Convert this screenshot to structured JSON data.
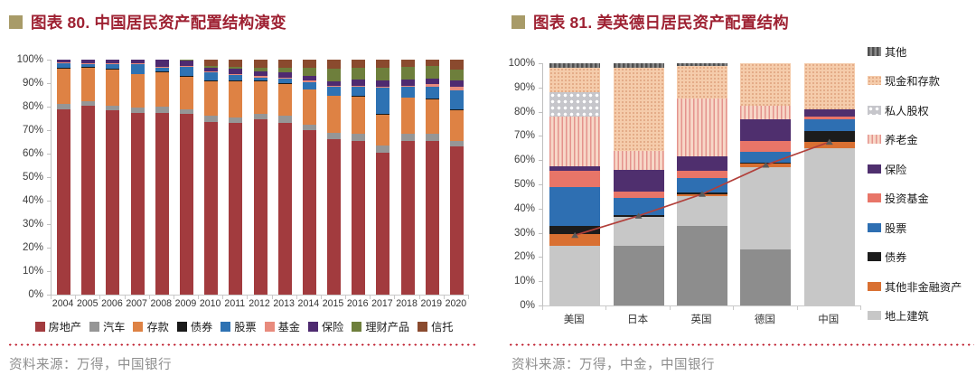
{
  "page": {
    "colors": {
      "title_red": "#9E2132",
      "bullet_khaki": "#A89B68",
      "dotted_red": "#BF1E2E",
      "source_gray": "#8E8E8E"
    },
    "left_source": "资料来源：万得，中国银行",
    "right_source": "资料来源：万得，中金，中国银行"
  },
  "chart_data": [
    {
      "type": "bar",
      "stacked": true,
      "title": "图表 80. 中国居民资产配置结构演变",
      "ylim": [
        0,
        100
      ],
      "y_ticks": [
        "0%",
        "10%",
        "20%",
        "30%",
        "40%",
        "50%",
        "60%",
        "70%",
        "80%",
        "90%",
        "100%"
      ],
      "categories": [
        "2004",
        "2005",
        "2006",
        "2007",
        "2008",
        "2009",
        "2010",
        "2011",
        "2012",
        "2013",
        "2014",
        "2015",
        "2016",
        "2017",
        "2018",
        "2019",
        "2020"
      ],
      "series": [
        {
          "name": "房地产",
          "color": "#A23B3E",
          "values": [
            79,
            80.5,
            78.5,
            77.5,
            77.5,
            77,
            73.5,
            73,
            74.5,
            73,
            70,
            66,
            65.5,
            60.5,
            65.5,
            65.5,
            63
          ]
        },
        {
          "name": "汽车",
          "color": "#969696",
          "values": [
            2,
            2,
            2,
            2,
            2.5,
            2,
            2.5,
            2.5,
            2.5,
            3,
            2.5,
            3,
            3,
            3,
            3,
            3,
            2.5
          ]
        },
        {
          "name": "存款",
          "color": "#DE8244",
          "values": [
            15.2,
            14.2,
            15.2,
            14.2,
            14.7,
            13.7,
            14.7,
            15.2,
            13.7,
            13.7,
            14.7,
            15.5,
            15.7,
            13.2,
            15.2,
            14.7,
            13
          ]
        },
        {
          "name": "债券",
          "color": "#1A1A1A",
          "values": [
            0.3,
            0.3,
            0.3,
            0.3,
            0.3,
            0.3,
            0.3,
            0.3,
            0.3,
            0.3,
            0.3,
            0.3,
            0.3,
            0.3,
            0.3,
            0.3,
            0.3
          ]
        },
        {
          "name": "股票",
          "color": "#2E72B3",
          "values": [
            2,
            1,
            2,
            4,
            1.5,
            4,
            3.5,
            2.5,
            1.5,
            2,
            3,
            3.5,
            4,
            11,
            4.5,
            5,
            8
          ]
        },
        {
          "name": "基金",
          "color": "#E88B7D",
          "values": [
            0.3,
            0.5,
            0.5,
            0.5,
            0.5,
            0.5,
            0.5,
            0.5,
            0.5,
            0.5,
            0.5,
            0.5,
            0.5,
            0.5,
            0.5,
            1,
            1.5
          ]
        },
        {
          "name": "保险",
          "color": "#4E2A70",
          "values": [
            1.2,
            1.5,
            1.5,
            1.5,
            3,
            2,
            1.5,
            2,
            2,
            2,
            2,
            2,
            2.5,
            2.5,
            2.5,
            2.5,
            3
          ]
        },
        {
          "name": "理财产品",
          "color": "#6E7F3C",
          "values": [
            0,
            0,
            0,
            0,
            0,
            0.5,
            1,
            1,
            1.5,
            2,
            3.5,
            5.5,
            5,
            5.5,
            5.5,
            5.5,
            4.5
          ]
        },
        {
          "name": "信托",
          "color": "#8A4A2E",
          "values": [
            0,
            0,
            0,
            0,
            0,
            0,
            2.5,
            3,
            3.5,
            3.5,
            3.5,
            3.7,
            3.5,
            3.5,
            3,
            2.5,
            4.2
          ]
        }
      ],
      "legend": [
        "房地产",
        "汽车",
        "存款",
        "债券",
        "股票",
        "基金",
        "保险",
        "理财产品",
        "信托"
      ]
    },
    {
      "type": "bar",
      "stacked": true,
      "title": "图表 81. 美英德日居民资产配置结构",
      "ylim": [
        0,
        100
      ],
      "y_ticks": [
        "0%",
        "10%",
        "20%",
        "30%",
        "40%",
        "50%",
        "60%",
        "70%",
        "80%",
        "90%",
        "100%"
      ],
      "categories": [
        "美国",
        "日本",
        "英国",
        "德国",
        "中国"
      ],
      "series": [
        {
          "name": "",
          "key": "base-dark-gray",
          "color": "#8D8D8D",
          "values": [
            0,
            24.5,
            33,
            23,
            0
          ]
        },
        {
          "name": "地上建筑",
          "key": "building",
          "color": "#C7C7C7",
          "values": [
            24.5,
            12,
            12,
            34,
            65
          ]
        },
        {
          "name": "其他非金融资产",
          "key": "other-nonfinancial",
          "color": "#D97032",
          "values": [
            5,
            0,
            1,
            1.5,
            2.5
          ]
        },
        {
          "name": "债券",
          "key": "bond",
          "color": "#1C1C1C",
          "values": [
            3.5,
            1,
            0.5,
            0.5,
            4.5
          ]
        },
        {
          "name": "股票",
          "key": "stock",
          "color": "#2E6FB2",
          "values": [
            16,
            7,
            6,
            4.5,
            5
          ]
        },
        {
          "name": "投资基金",
          "key": "fund",
          "color": "#E87568",
          "values": [
            6.5,
            2.5,
            3,
            4.5,
            1
          ]
        },
        {
          "name": "保险",
          "key": "insurance",
          "color": "#4F2F6E",
          "values": [
            2,
            9,
            6,
            9,
            3
          ]
        },
        {
          "name": "养老金",
          "key": "pension",
          "pattern": "v-stripes",
          "bg": "#F7D7C7",
          "fg": "#E4938D",
          "values": [
            20.5,
            8,
            24,
            5.5,
            0
          ]
        },
        {
          "name": "私人股权",
          "key": "private-equity",
          "pattern": "polka",
          "bg": "#C6C6CB",
          "fg": "#FFFFFF",
          "values": [
            10,
            0,
            0,
            0,
            0
          ]
        },
        {
          "name": "现金和存款",
          "key": "cash-deposit",
          "pattern": "fine-dots",
          "bg": "#F5CCAB",
          "fg": "#DFA27C",
          "values": [
            10,
            34,
            13.5,
            17.5,
            19
          ]
        },
        {
          "name": "其他",
          "key": "other",
          "pattern": "dash-hatch",
          "bg": "#8A8A8A",
          "fg": "#4F4F4F",
          "values": [
            2,
            2,
            1,
            0,
            0
          ]
        }
      ],
      "legend": [
        "其他",
        "现金和存款",
        "私人股权",
        "养老金",
        "保险",
        "投资基金",
        "股票",
        "债券",
        "其他非金融资产",
        "地上建筑"
      ],
      "line": {
        "color": "#B2403B",
        "marker_color": "#5A5A5A",
        "values": [
          29,
          37,
          46,
          58,
          67.5
        ]
      }
    }
  ]
}
